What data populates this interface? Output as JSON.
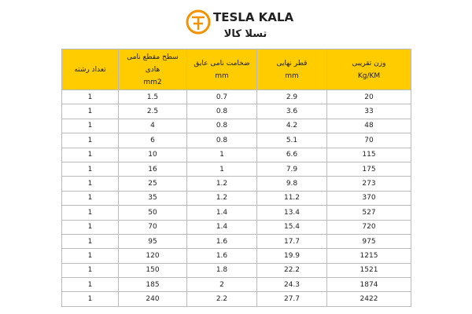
{
  "logo": {
    "name": "TESLA KALA",
    "name_fa": "تسلا کالا"
  },
  "table": {
    "headers": [
      [
        "تعداد رشته"
      ],
      [
        "سطح مقطع نامی هادی",
        "mm2"
      ],
      [
        "ضخامت نامی عایق",
        "mm"
      ],
      [
        "قطر نهایی",
        "mm"
      ],
      [
        "وزن تقریبی",
        "Kg/KM"
      ]
    ],
    "rows": [
      [
        "1",
        "1.5",
        "0.7",
        "2.9",
        "20"
      ],
      [
        "1",
        "2.5",
        "0.8",
        "3.6",
        "33"
      ],
      [
        "1",
        "4",
        "0.8",
        "4.2",
        "48"
      ],
      [
        "1",
        "6",
        "0.8",
        "5.1",
        "70"
      ],
      [
        "1",
        "10",
        "1",
        "6.6",
        "115"
      ],
      [
        "1",
        "16",
        "1",
        "7.9",
        "175"
      ],
      [
        "1",
        "25",
        "1.2",
        "9.8",
        "273"
      ],
      [
        "1",
        "35",
        "1.2",
        "11.2",
        "370"
      ],
      [
        "1",
        "50",
        "1.4",
        "13.4",
        "527"
      ],
      [
        "1",
        "70",
        "1.4",
        "15.4",
        "720"
      ],
      [
        "1",
        "95",
        "1.6",
        "17.7",
        "975"
      ],
      [
        "1",
        "120",
        "1.6",
        "19.9",
        "1215"
      ],
      [
        "1",
        "150",
        "1.8",
        "22.2",
        "1521"
      ],
      [
        "1",
        "185",
        "2",
        "24.3",
        "1874"
      ],
      [
        "1",
        "240",
        "2.2",
        "27.7",
        "2422"
      ]
    ]
  }
}
